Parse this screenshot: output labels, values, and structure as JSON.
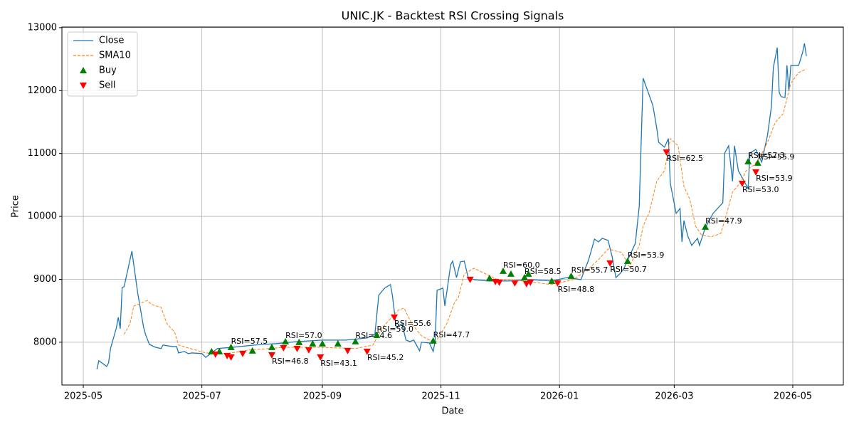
{
  "chart_data": {
    "type": "line",
    "title": "UNIC.JK - Backtest RSI Crossing Signals",
    "xlabel": "Date",
    "ylabel": "Price",
    "xlim": [
      "2025-04-20",
      "2026-05-27"
    ],
    "xticks": [
      {
        "value": "2025-05-01",
        "label": "2025-05"
      },
      {
        "value": "2025-07-01",
        "label": "2025-07"
      },
      {
        "value": "2025-09-01",
        "label": "2025-09"
      },
      {
        "value": "2025-11-01",
        "label": "2025-11"
      },
      {
        "value": "2026-01-01",
        "label": "2026-01"
      },
      {
        "value": "2026-03-01",
        "label": "2026-03"
      },
      {
        "value": "2026-05-01",
        "label": "2026-05"
      }
    ],
    "ylim": [
      7320,
      13010
    ],
    "yticks": [
      8000,
      9000,
      10000,
      11000,
      12000,
      13000
    ],
    "grid": true,
    "legend": "upper left",
    "series": [
      {
        "name": "Close",
        "color": "#1f77b4",
        "style": "solid",
        "x": [
          "2025-05-08",
          "2025-05-09",
          "2025-05-13",
          "2025-05-14",
          "2025-05-15",
          "2025-05-18",
          "2025-05-19",
          "2025-05-20",
          "2025-05-21",
          "2025-05-22",
          "2025-05-26",
          "2025-05-29",
          "2025-06-01",
          "2025-06-02",
          "2025-06-04",
          "2025-06-07",
          "2025-06-10",
          "2025-06-11",
          "2025-06-16",
          "2025-06-18",
          "2025-06-19",
          "2025-06-22",
          "2025-06-24",
          "2025-06-26",
          "2025-07-01",
          "2025-07-03",
          "2025-07-06",
          "2025-07-09",
          "2025-07-17",
          "2025-07-28",
          "2025-08-08",
          "2025-08-19",
          "2025-09-01",
          "2025-09-13",
          "2025-09-24",
          "2025-09-28",
          "2025-09-30",
          "2025-10-03",
          "2025-10-06",
          "2025-10-07",
          "2025-10-09",
          "2025-10-12",
          "2025-10-14",
          "2025-10-16",
          "2025-10-18",
          "2025-10-21",
          "2025-10-22",
          "2025-10-26",
          "2025-10-28",
          "2025-10-29",
          "2025-10-30",
          "2025-11-02",
          "2025-11-03",
          "2025-11-06",
          "2025-11-07",
          "2025-11-09",
          "2025-11-11",
          "2025-11-13",
          "2025-11-15",
          "2025-11-18",
          "2025-11-25",
          "2025-12-06",
          "2025-12-17",
          "2025-12-28",
          "2026-01-05",
          "2026-01-12",
          "2026-01-16",
          "2026-01-19",
          "2026-01-21",
          "2026-01-23",
          "2026-01-26",
          "2026-01-28",
          "2026-01-30",
          "2026-02-01",
          "2026-02-03",
          "2026-02-06",
          "2026-02-09",
          "2026-02-11",
          "2026-02-13",
          "2026-02-18",
          "2026-02-20",
          "2026-02-21",
          "2026-02-24",
          "2026-02-26",
          "2026-02-27",
          "2026-03-02",
          "2026-03-04",
          "2026-03-05",
          "2026-03-06",
          "2026-03-08",
          "2026-03-10",
          "2026-03-13",
          "2026-03-14",
          "2026-03-17",
          "2026-03-21",
          "2026-03-26",
          "2026-03-27",
          "2026-03-29",
          "2026-03-31",
          "2026-04-01",
          "2026-04-03",
          "2026-04-06",
          "2026-04-08",
          "2026-04-09",
          "2026-04-12",
          "2026-04-15",
          "2026-04-18",
          "2026-04-20",
          "2026-04-21",
          "2026-04-23",
          "2026-04-24",
          "2026-04-25",
          "2026-04-27",
          "2026-04-28",
          "2026-04-29",
          "2026-04-30",
          "2026-05-04",
          "2026-05-06",
          "2026-05-07",
          "2026-05-08"
        ],
        "values": [
          7570,
          7706,
          7615,
          7672,
          7900,
          8226,
          8396,
          8215,
          8871,
          8882,
          9448,
          8780,
          8240,
          8124,
          7966,
          7921,
          7900,
          7955,
          7930,
          7932,
          7830,
          7853,
          7820,
          7830,
          7820,
          7760,
          7830,
          7900,
          7920,
          7955,
          7977,
          8010,
          8034,
          8034,
          8068,
          8124,
          8747,
          8860,
          8916,
          8747,
          8238,
          8294,
          8034,
          8011,
          8034,
          7864,
          8000,
          7989,
          7853,
          8011,
          8826,
          8860,
          8577,
          9233,
          9290,
          9029,
          9278,
          9290,
          9029,
          8995,
          8973,
          8973,
          8995,
          8973,
          9029,
          8995,
          9312,
          9640,
          9595,
          9652,
          9618,
          9369,
          9029,
          9086,
          9165,
          9369,
          9572,
          10160,
          12197,
          11767,
          11405,
          11179,
          11100,
          11236,
          10523,
          10048,
          10127,
          9595,
          9934,
          9686,
          9539,
          9652,
          9539,
          9821,
          10048,
          10217,
          11009,
          11122,
          10557,
          11122,
          10726,
          10557,
          10443,
          11009,
          11065,
          10862,
          11292,
          11744,
          12367,
          12683,
          11971,
          11903,
          11891,
          12400,
          11990,
          12400,
          12400,
          12600,
          12750,
          12550
        ]
      },
      {
        "name": "SMA10",
        "color": "#ff7f0e",
        "style": "dashed",
        "x": [
          "2025-05-22",
          "2025-05-25",
          "2025-05-27",
          "2025-05-30",
          "2025-06-03",
          "2025-06-05",
          "2025-06-10",
          "2025-06-13",
          "2025-06-17",
          "2025-06-19",
          "2025-06-25",
          "2025-07-03",
          "2025-07-14",
          "2025-07-25",
          "2025-08-13",
          "2025-08-30",
          "2025-09-18",
          "2025-09-27",
          "2025-10-02",
          "2025-10-10",
          "2025-10-13",
          "2025-10-17",
          "2025-10-22",
          "2025-10-29",
          "2025-11-04",
          "2025-11-08",
          "2025-11-10",
          "2025-11-13",
          "2025-11-18",
          "2025-11-24",
          "2025-11-30",
          "2025-12-14",
          "2025-12-28",
          "2026-01-08",
          "2026-01-15",
          "2026-01-21",
          "2026-01-26",
          "2026-02-02",
          "2026-02-06",
          "2026-02-11",
          "2026-02-13",
          "2026-02-16",
          "2026-02-20",
          "2026-02-24",
          "2026-02-27",
          "2026-03-03",
          "2026-03-06",
          "2026-03-09",
          "2026-03-12",
          "2026-03-15",
          "2026-03-20",
          "2026-03-25",
          "2026-03-28",
          "2026-03-31",
          "2026-04-04",
          "2026-04-07",
          "2026-04-11",
          "2026-04-14",
          "2026-04-18",
          "2026-04-22",
          "2026-04-26",
          "2026-04-30",
          "2026-05-04",
          "2026-05-08"
        ],
        "values": [
          8124,
          8294,
          8577,
          8611,
          8667,
          8600,
          8554,
          8294,
          8158,
          7955,
          7900,
          7830,
          7820,
          7875,
          7920,
          7920,
          7900,
          7955,
          8238,
          8509,
          8543,
          8294,
          8102,
          7989,
          8294,
          8633,
          8713,
          9086,
          9176,
          9086,
          8995,
          8973,
          8916,
          8995,
          9142,
          9312,
          9482,
          9425,
          9199,
          9538,
          9844,
          10048,
          10557,
          10726,
          11236,
          11122,
          10477,
          10274,
          9844,
          9708,
          9674,
          9731,
          10048,
          10387,
          10534,
          10726,
          10817,
          10930,
          11179,
          11495,
          11631,
          12118,
          12287,
          12344
        ]
      },
      {
        "name": "Buy",
        "color": "#008000",
        "marker": "^",
        "x": [
          "2025-07-06",
          "2025-07-10",
          "2025-07-16",
          "2025-07-27",
          "2025-08-06",
          "2025-08-13",
          "2025-08-20",
          "2025-08-27",
          "2025-09-01",
          "2025-09-09",
          "2025-09-18",
          "2025-09-29",
          "2025-10-28",
          "2025-11-26",
          "2025-12-03",
          "2025-12-07",
          "2025-12-14",
          "2025-12-16",
          "2025-12-28",
          "2026-01-07",
          "2026-02-05",
          "2026-03-17",
          "2026-04-08",
          "2026-04-13"
        ],
        "values": [
          7853,
          7853,
          7921,
          7864,
          7921,
          8011,
          8000,
          7977,
          7977,
          7977,
          8011,
          8113,
          8023,
          9018,
          9131,
          9086,
          9029,
          9086,
          8973,
          9052,
          9290,
          9833,
          10873,
          10851
        ],
        "labels": [
          null,
          null,
          "RSI=57.5",
          null,
          null,
          "RSI=57.0",
          null,
          null,
          null,
          null,
          "RSI=54.6",
          "RSI=59.0",
          "RSI=47.7",
          null,
          "RSI=60.0",
          null,
          "RSI=58.5",
          null,
          null,
          "RSI=55.7",
          "RSI=53.9",
          "RSI=47.9",
          "RSI=57.3",
          "RSI=55.9"
        ]
      },
      {
        "name": "Sell",
        "color": "#ff0000",
        "marker": "v",
        "x": [
          "2025-07-08",
          "2025-07-14",
          "2025-07-16",
          "2025-07-22",
          "2025-08-06",
          "2025-08-12",
          "2025-08-19",
          "2025-08-25",
          "2025-08-31",
          "2025-09-14",
          "2025-09-24",
          "2025-10-08",
          "2025-11-16",
          "2025-11-29",
          "2025-12-01",
          "2025-12-09",
          "2025-12-15",
          "2025-12-17",
          "2025-12-31",
          "2026-01-27",
          "2026-02-25",
          "2026-04-05",
          "2026-04-12"
        ],
        "values": [
          7808,
          7785,
          7762,
          7819,
          7796,
          7910,
          7898,
          7876,
          7762,
          7864,
          7853,
          8396,
          8995,
          8962,
          8950,
          8939,
          8928,
          8950,
          8939,
          9256,
          11020,
          10523,
          10704
        ],
        "labels": [
          null,
          null,
          null,
          null,
          "RSI=46.8",
          null,
          null,
          null,
          "RSI=43.1",
          null,
          "RSI=45.2",
          "RSI=55.6",
          null,
          null,
          null,
          null,
          null,
          null,
          "RSI=48.8",
          "RSI=50.7",
          "RSI=62.5",
          "RSI=53.0",
          "RSI=53.9"
        ]
      }
    ]
  }
}
